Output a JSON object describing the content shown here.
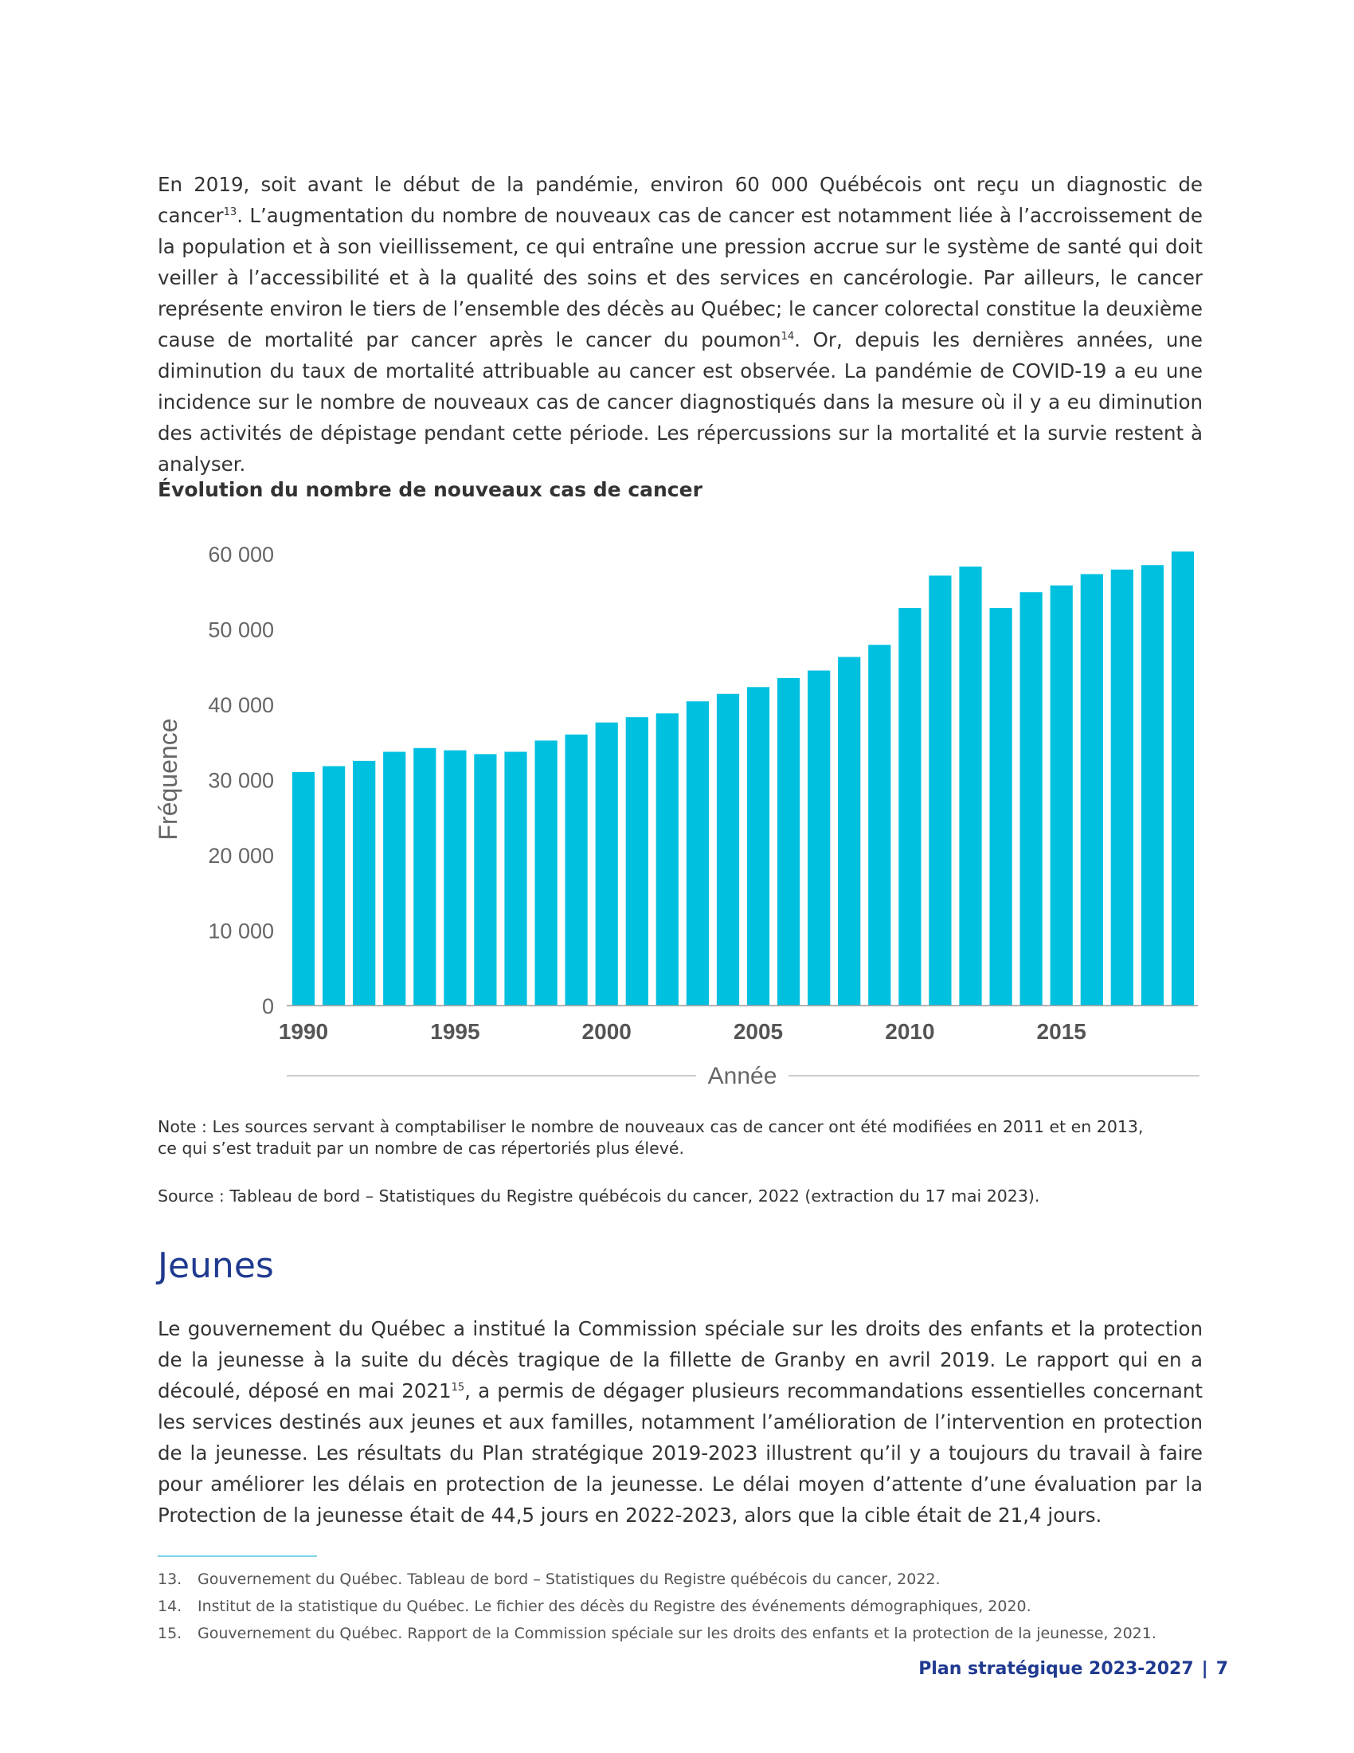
{
  "intro": {
    "part1": "En 2019, soit avant le début de la pandémie, environ 60 000 Québécois ont reçu un diagnostic de cancer",
    "sup1": "13",
    "part2": ". L’augmentation du nombre de nouveaux cas de cancer est notamment liée à l’accroissement de la population et à son vieillissement, ce qui entraîne une pression accrue sur le système de santé qui doit veiller à l’accessibilité et à la qualité des soins et des services en cancérologie. Par ailleurs, le cancer représente environ le tiers de l’ensemble des décès au Québec; le cancer colorectal constitue la deuxième cause de mortalité par cancer après le cancer du poumon",
    "sup2": "14",
    "part3": ". Or, depuis les dernières années, une diminution du taux de mortalité attribuable au cancer est observée. La pandémie de COVID-19 a eu une incidence sur le nombre de nouveaux cas de cancer diagnostiqués dans la mesure où il y a eu diminution des activités de dépistage pendant cette période. Les répercussions sur la mortalité et la survie restent à analyser."
  },
  "chart_title": "Évolution du nombre de nouveaux cas de cancer",
  "chart_data": {
    "type": "bar",
    "title": "Évolution du nombre de nouveaux cas de cancer",
    "xlabel": "Année",
    "ylabel": "Fréquence",
    "ylim": [
      0,
      60000
    ],
    "yticks": [
      "0",
      "10 000",
      "20 000",
      "30 000",
      "40 000",
      "50 000",
      "60 000"
    ],
    "xtick_labels": [
      "1990",
      "1995",
      "2000",
      "2005",
      "2010",
      "2015"
    ],
    "bar_color": "#00c0e0",
    "categories": [
      1990,
      1991,
      1992,
      1993,
      1994,
      1995,
      1996,
      1997,
      1998,
      1999,
      2000,
      2001,
      2002,
      2003,
      2004,
      2005,
      2006,
      2007,
      2008,
      2009,
      2010,
      2011,
      2012,
      2013,
      2014,
      2015,
      2016,
      2017,
      2018,
      2019
    ],
    "values": [
      31000,
      31800,
      32500,
      33700,
      34200,
      33900,
      33400,
      33700,
      35200,
      36000,
      37600,
      38300,
      38800,
      40400,
      41400,
      42300,
      43500,
      44500,
      46300,
      47900,
      52800,
      57100,
      58300,
      52800,
      54900,
      55800,
      57300,
      57900,
      58500,
      60300
    ],
    "grid": false
  },
  "note": {
    "line1": "Note : Les sources servant à comptabiliser le nombre de nouveaux cas de cancer ont été modifiées en 2011 et en 2013,",
    "line2": "ce qui s’est traduit par un nombre de cas répertoriés plus élevé."
  },
  "source": "Source : Tableau de bord – Statistiques du Registre québécois du cancer, 2022 (extraction du 17 mai 2023).",
  "section_title": "Jeunes",
  "youth": {
    "part1": "Le gouvernement du Québec a institué la Commission spéciale sur les droits des enfants et la protection de la jeunesse à la suite du décès tragique de la fillette de Granby en avril 2019. Le rapport qui en a découlé, déposé en mai 2021",
    "sup": "15",
    "part2": ", a permis de dégager plusieurs recommandations essentielles concernant les services destinés aux jeunes et aux familles, notamment l’amélioration de l’intervention en protection de la jeunesse. Les résultats du Plan stratégique 2019-2023 illustrent qu’il y a toujours du travail à faire pour améliorer les délais en protection de la jeunesse. Le délai moyen d’attente d’une évaluation par la Protection de la jeunesse était de 44,5 jours en 2022-2023, alors que la cible était de 21,4 jours."
  },
  "footnotes": [
    {
      "num": "13.",
      "text": "Gouvernement du Québec. Tableau de bord – Statistiques du Registre québécois du cancer, 2022."
    },
    {
      "num": "14.",
      "text": "Institut de la statistique du Québec. Le fichier des décès du Registre des événements démographiques, 2020."
    },
    {
      "num": "15.",
      "text": "Gouvernement du Québec. Rapport de la Commission spéciale sur les droits des enfants et la protection de la jeunesse, 2021."
    }
  ],
  "footer": {
    "title": "Plan stratégique 2023-2027",
    "separator": "|",
    "page": "7"
  }
}
